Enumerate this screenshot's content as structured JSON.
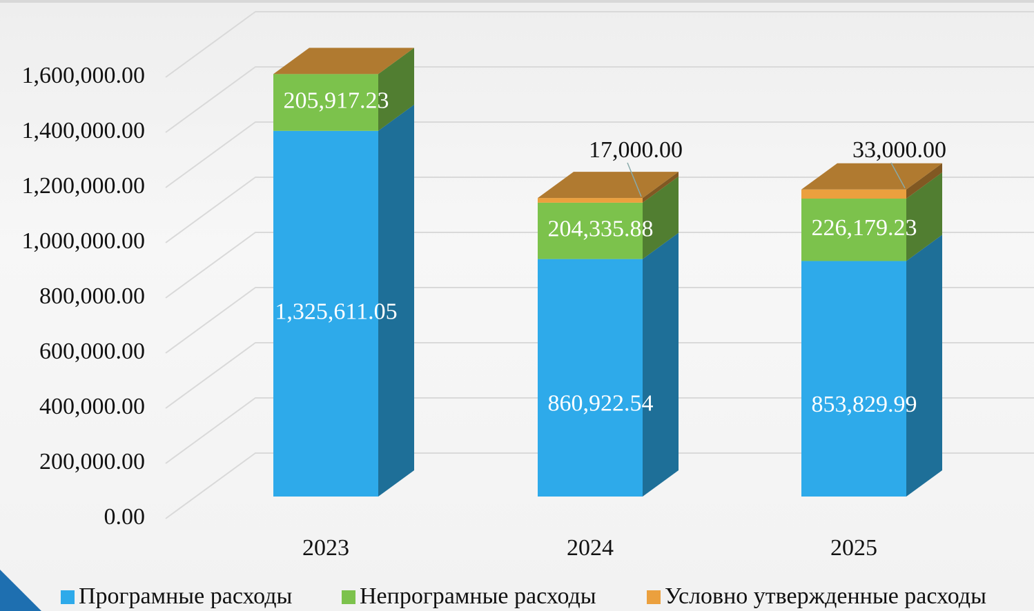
{
  "chart_data": {
    "type": "bar3d_stacked",
    "categories": [
      "2023",
      "2024",
      "2025"
    ],
    "series": [
      {
        "name": "Програмные расходы",
        "color": "#2eaaea",
        "values": [
          1325611.05,
          860922.54,
          853829.99
        ],
        "value_labels": [
          "1,325,611.05",
          "860,922.54",
          "853,829.99"
        ]
      },
      {
        "name": "Непрограмные расходы",
        "color": "#7cc24c",
        "values": [
          205917.23,
          204335.88,
          226179.23
        ],
        "value_labels": [
          "205,917.23",
          "204,335.88",
          "226,179.23"
        ]
      },
      {
        "name": "Условно утвержденные расходы",
        "color": "#eba03e",
        "values": [
          null,
          17000,
          33000
        ],
        "value_labels": [
          null,
          "17,000.00",
          "33,000.00"
        ]
      }
    ],
    "ylim": [
      0,
      1600000
    ],
    "yticks": [
      {
        "value": 0,
        "label": "0.00"
      },
      {
        "value": 200000,
        "label": "200,000.00"
      },
      {
        "value": 400000,
        "label": "400,000.00"
      },
      {
        "value": 600000,
        "label": "600,000.00"
      },
      {
        "value": 800000,
        "label": "800,000.00"
      },
      {
        "value": 1000000,
        "label": "1,000,000.00"
      },
      {
        "value": 1200000,
        "label": "1,200,000.00"
      },
      {
        "value": 1400000,
        "label": "1,400,000.00"
      },
      {
        "value": 1600000,
        "label": "1,600,000.00"
      }
    ],
    "grid": true
  }
}
